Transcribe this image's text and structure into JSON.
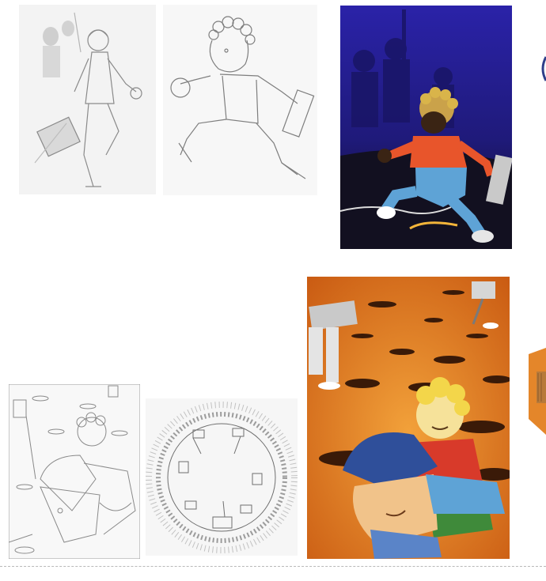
{
  "gallery": {
    "row1": [
      {
        "name": "pencil-sketch-boy-suitcase"
      },
      {
        "name": "pencil-sketch-boy-running"
      },
      {
        "name": "color-illustration-boy-running-night"
      }
    ],
    "row2": [
      {
        "name": "pencil-sketch-holes-field"
      },
      {
        "name": "pencil-sketch-circular-hole"
      },
      {
        "name": "color-illustration-orange-holes"
      }
    ]
  },
  "colors": {
    "night_bg": "#1f1a7a",
    "night_ground": "#14121f",
    "orange_bg": "#e07a1f",
    "shirt": "#e8552b",
    "overalls": "#5ea3d6",
    "cap": "#2f4f9a",
    "hair": "#f3d64a",
    "shirt_red": "#d83a2a"
  }
}
